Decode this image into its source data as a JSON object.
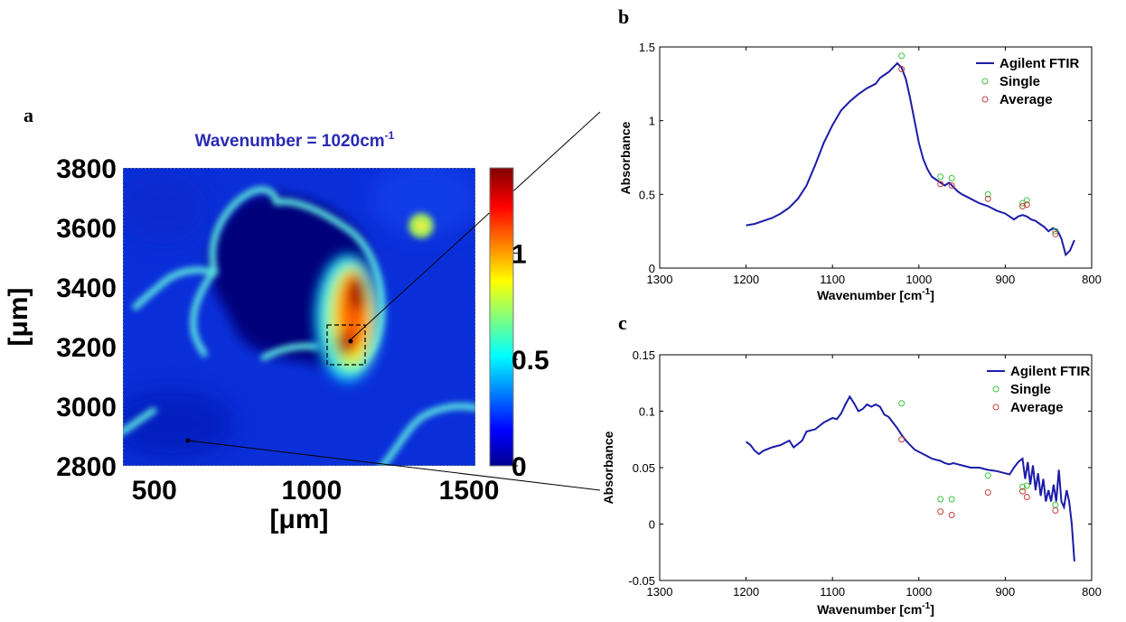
{
  "panels": {
    "a": "a",
    "b": "b",
    "c": "c"
  },
  "chart_data": [
    {
      "type": "heatmap",
      "panel": "a",
      "title_prefix": "Wavenumber = 1020cm",
      "title_sup": "-1",
      "xlabel": "[μm]",
      "ylabel": "[μm]",
      "xlim": [
        400,
        1520
      ],
      "ylim": [
        2800,
        3800
      ],
      "xticks": [
        "500",
        "1000",
        "1500"
      ],
      "xtick_values": [
        500,
        1000,
        1500
      ],
      "yticks": [
        "2800",
        "3000",
        "3200",
        "3400",
        "3600",
        "3800"
      ],
      "ytick_values": [
        2800,
        3000,
        3200,
        3400,
        3600,
        3800
      ],
      "colorbar": {
        "min": 0,
        "max": 1.4,
        "ticks": [
          "0",
          "0.5",
          "1"
        ],
        "tick_values": [
          0,
          0.5,
          1
        ],
        "colors": [
          "#00008f",
          "#0000ff",
          "#00ffff",
          "#ffff00",
          "#ff0000",
          "#800000"
        ]
      },
      "colormap": "jet",
      "roi": {
        "x": [
          1065,
          1190
        ],
        "y": [
          3165,
          3300
        ]
      },
      "points": {
        "roi_point": {
          "x": 1110,
          "y": 3220
        },
        "background_point": {
          "x": 600,
          "y": 2890
        }
      }
    },
    {
      "type": "line",
      "panel": "b",
      "xlabel_prefix": "Wavenumber [cm",
      "xlabel_sup": "-1",
      "xlabel_suffix": "]",
      "ylabel": "Absorbance",
      "xlim": [
        1300,
        800
      ],
      "ylim": [
        0,
        1.5
      ],
      "xticks": [
        "1300",
        "1200",
        "1100",
        "1000",
        "900",
        "800"
      ],
      "xtick_values": [
        1300,
        1200,
        1100,
        1000,
        900,
        800
      ],
      "yticks": [
        "0",
        "0.5",
        "1",
        "1.5"
      ],
      "ytick_values": [
        0,
        0.5,
        1,
        1.5
      ],
      "legend_position": "top-right",
      "series": [
        {
          "name": "Agilent FTIR",
          "kind": "line",
          "color": "#1c1ca8",
          "x": [
            1200,
            1190,
            1180,
            1170,
            1160,
            1150,
            1140,
            1130,
            1120,
            1110,
            1100,
            1090,
            1080,
            1070,
            1060,
            1050,
            1045,
            1040,
            1035,
            1030,
            1025,
            1020,
            1015,
            1010,
            1005,
            1000,
            995,
            990,
            985,
            980,
            975,
            970,
            965,
            960,
            955,
            950,
            940,
            930,
            920,
            910,
            900,
            895,
            890,
            885,
            880,
            875,
            870,
            865,
            860,
            855,
            850,
            845,
            840,
            835,
            830,
            825,
            820
          ],
          "y": [
            0.29,
            0.3,
            0.32,
            0.34,
            0.37,
            0.41,
            0.47,
            0.56,
            0.7,
            0.85,
            0.97,
            1.07,
            1.13,
            1.18,
            1.22,
            1.25,
            1.29,
            1.31,
            1.33,
            1.36,
            1.39,
            1.36,
            1.28,
            1.15,
            1.0,
            0.85,
            0.74,
            0.67,
            0.62,
            0.6,
            0.58,
            0.56,
            0.58,
            0.55,
            0.52,
            0.5,
            0.47,
            0.44,
            0.42,
            0.39,
            0.37,
            0.35,
            0.33,
            0.35,
            0.36,
            0.35,
            0.33,
            0.32,
            0.3,
            0.28,
            0.25,
            0.27,
            0.26,
            0.2,
            0.09,
            0.12,
            0.19
          ]
        },
        {
          "name": "Single",
          "kind": "marker",
          "color": "#3ec43e",
          "x": [
            1020,
            975,
            962,
            920,
            880,
            875,
            842
          ],
          "y": [
            1.44,
            0.62,
            0.61,
            0.5,
            0.44,
            0.46,
            0.25
          ]
        },
        {
          "name": "Average",
          "kind": "marker",
          "color": "#c43e3e",
          "x": [
            1020,
            975,
            962,
            920,
            880,
            875,
            842
          ],
          "y": [
            1.35,
            0.57,
            0.56,
            0.47,
            0.42,
            0.43,
            0.23
          ]
        }
      ]
    },
    {
      "type": "line",
      "panel": "c",
      "xlabel_prefix": "Wavenumber [cm",
      "xlabel_sup": "-1",
      "xlabel_suffix": "]",
      "ylabel": "Absorbance",
      "xlim": [
        1300,
        800
      ],
      "ylim": [
        -0.05,
        0.15
      ],
      "xticks": [
        "1300",
        "1200",
        "1100",
        "1000",
        "900",
        "800"
      ],
      "xtick_values": [
        1300,
        1200,
        1100,
        1000,
        900,
        800
      ],
      "yticks": [
        "-0.05",
        "0",
        "0.05",
        "0.1",
        "0.15"
      ],
      "ytick_values": [
        -0.05,
        0,
        0.05,
        0.1,
        0.15
      ],
      "legend_position": "top-right",
      "series": [
        {
          "name": "Agilent FTIR",
          "kind": "line",
          "color": "#1c1ca8",
          "x": [
            1200,
            1195,
            1190,
            1185,
            1180,
            1170,
            1160,
            1150,
            1145,
            1140,
            1135,
            1130,
            1120,
            1110,
            1100,
            1095,
            1090,
            1085,
            1080,
            1075,
            1070,
            1065,
            1060,
            1055,
            1050,
            1045,
            1040,
            1035,
            1030,
            1025,
            1020,
            1015,
            1010,
            1005,
            1000,
            995,
            990,
            985,
            980,
            975,
            970,
            965,
            960,
            955,
            950,
            940,
            930,
            920,
            910,
            900,
            895,
            890,
            885,
            880,
            877,
            874,
            871,
            868,
            865,
            862,
            859,
            856,
            853,
            850,
            847,
            844,
            841,
            838,
            835,
            832,
            829,
            826,
            823,
            820
          ],
          "y": [
            0.073,
            0.07,
            0.065,
            0.062,
            0.065,
            0.068,
            0.07,
            0.074,
            0.068,
            0.071,
            0.074,
            0.082,
            0.084,
            0.09,
            0.094,
            0.093,
            0.098,
            0.106,
            0.113,
            0.107,
            0.1,
            0.102,
            0.106,
            0.104,
            0.106,
            0.104,
            0.097,
            0.095,
            0.09,
            0.085,
            0.079,
            0.074,
            0.07,
            0.066,
            0.064,
            0.062,
            0.06,
            0.058,
            0.057,
            0.056,
            0.054,
            0.053,
            0.054,
            0.053,
            0.052,
            0.05,
            0.05,
            0.048,
            0.047,
            0.045,
            0.044,
            0.05,
            0.055,
            0.058,
            0.04,
            0.055,
            0.035,
            0.052,
            0.03,
            0.045,
            0.025,
            0.04,
            0.02,
            0.03,
            0.02,
            0.035,
            0.02,
            0.048,
            0.02,
            0.015,
            0.03,
            0.02,
            0.0,
            -0.033
          ]
        },
        {
          "name": "Single",
          "kind": "marker",
          "color": "#3ec43e",
          "x": [
            1020,
            975,
            962,
            920,
            880,
            875,
            842
          ],
          "y": [
            0.107,
            0.022,
            0.022,
            0.043,
            0.033,
            0.034,
            0.017
          ]
        },
        {
          "name": "Average",
          "kind": "marker",
          "color": "#c43e3e",
          "x": [
            1020,
            975,
            962,
            920,
            880,
            875,
            842
          ],
          "y": [
            0.075,
            0.011,
            0.008,
            0.028,
            0.029,
            0.024,
            0.012
          ]
        }
      ]
    }
  ]
}
